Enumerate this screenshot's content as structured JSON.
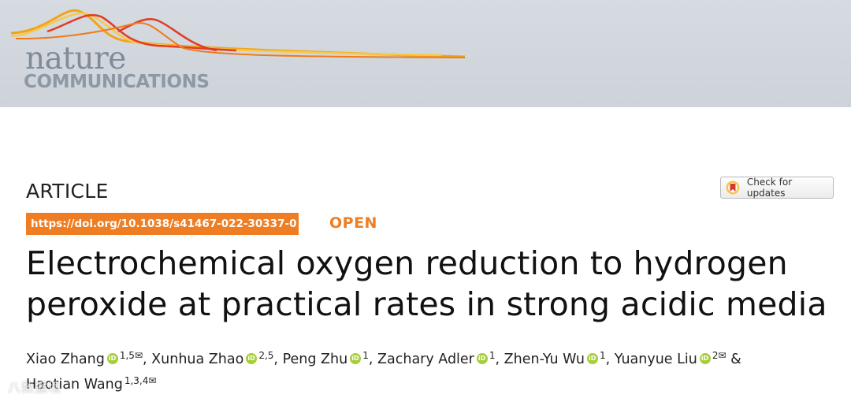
{
  "journal": {
    "name_line1": "nature",
    "name_line2": "COMMUNICATIONS"
  },
  "article": {
    "type": "ARTICLE",
    "check_updates": "Check for updates",
    "doi": "https://doi.org/10.1038/s41467-022-30337-0",
    "open": "OPEN",
    "title_line1": "Electrochemical oxygen reduction to hydrogen",
    "title_line2": "peroxide at practical rates in strong acidic media"
  },
  "authors": [
    {
      "name": "Xiao Zhang",
      "aff": "1,5",
      "corresponding": true,
      "orcid": true
    },
    {
      "name": "Xunhua Zhao",
      "aff": "2,5",
      "corresponding": false,
      "orcid": true
    },
    {
      "name": "Peng Zhu",
      "aff": "1",
      "corresponding": false,
      "orcid": true
    },
    {
      "name": "Zachary Adler",
      "aff": "1",
      "corresponding": false,
      "orcid": true
    },
    {
      "name": "Zhen-Yu Wu",
      "aff": "1",
      "corresponding": false,
      "orcid": true
    },
    {
      "name": "Yuanyue Liu",
      "aff": "2",
      "corresponding": true,
      "orcid": true
    },
    {
      "name": "Haotian Wang",
      "aff": "1,3,4",
      "corresponding": true,
      "orcid": false
    }
  ],
  "separators": {
    "comma": ",",
    "amp": "&"
  },
  "mail_glyph": "✉",
  "colors": {
    "orange": "#ee7d23",
    "orcid_green": "#a6ce39",
    "banner": "#d5dbe1"
  },
  "watermark": "八数据境"
}
